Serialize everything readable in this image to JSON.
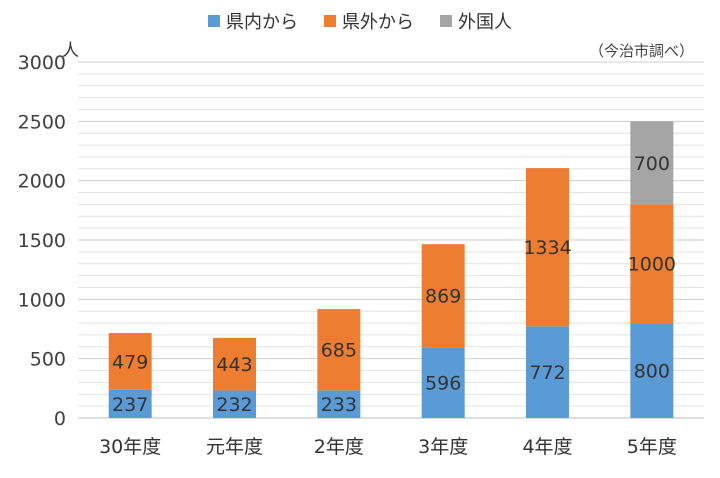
{
  "chart_data": {
    "type": "bar",
    "stacked": true,
    "categories": [
      "30年度",
      "元年度",
      "2年度",
      "3年度",
      "4年度",
      "5年度"
    ],
    "series": [
      {
        "name": "県内から",
        "color": "#5b9bd5",
        "values": [
          237,
          232,
          233,
          596,
          772,
          800
        ]
      },
      {
        "name": "県外から",
        "color": "#ed7d31",
        "values": [
          479,
          443,
          685,
          869,
          1334,
          1000
        ]
      },
      {
        "name": "外国人",
        "color": "#a5a5a5",
        "values": [
          0,
          0,
          0,
          0,
          0,
          700
        ]
      }
    ],
    "ylim": [
      0,
      3000
    ],
    "yticks": [
      0,
      500,
      1000,
      1500,
      2000,
      2500,
      3000
    ],
    "ylabel": "人",
    "grid": true,
    "legend_position": "top"
  },
  "annotation": "（今治市調べ）"
}
